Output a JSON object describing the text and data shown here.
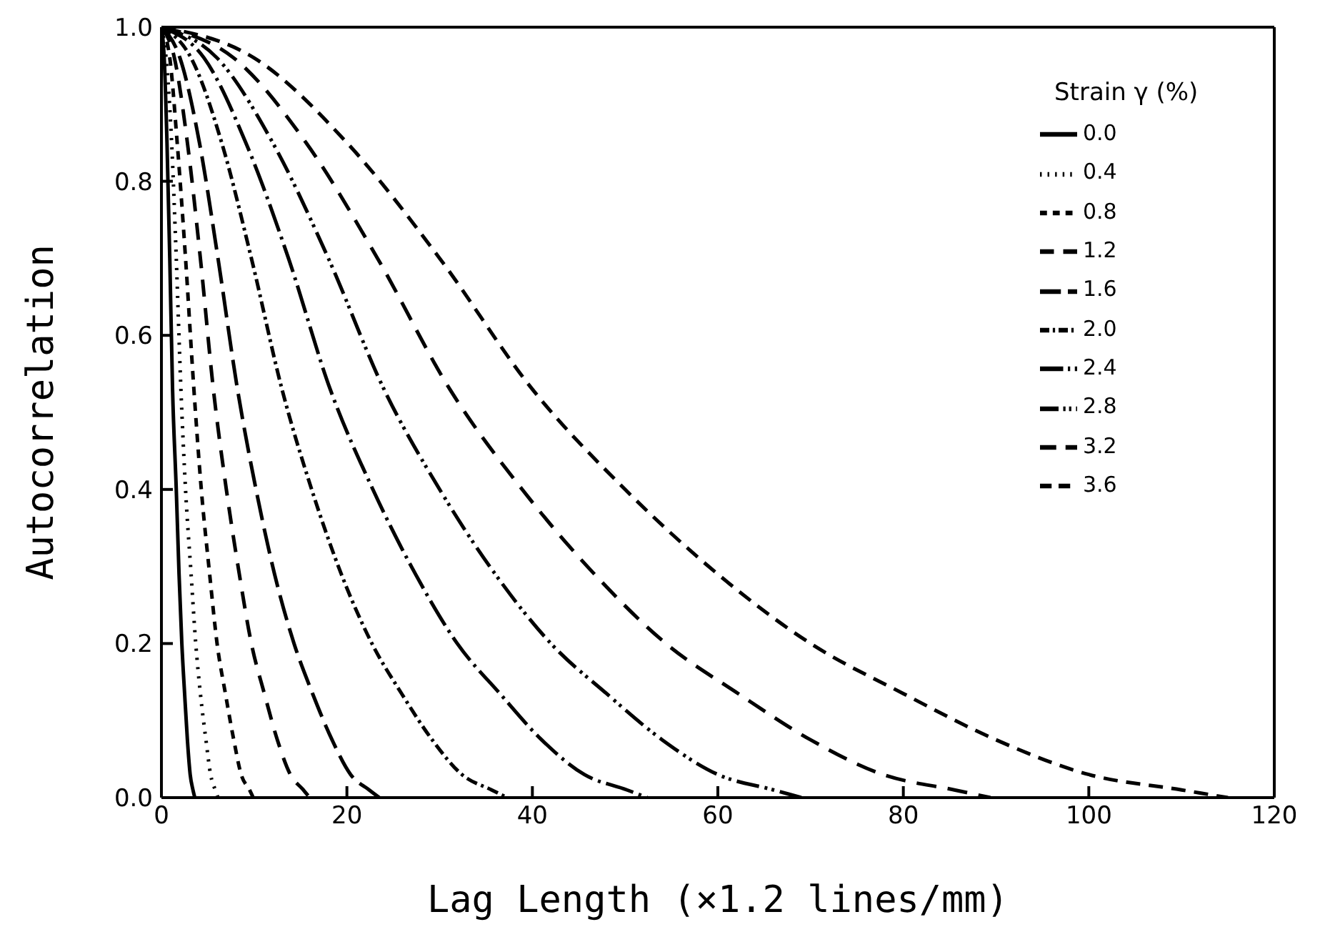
{
  "chart_data": {
    "type": "line",
    "xlabel": "Lag Length (×1.2 lines/mm)",
    "ylabel": "Autocorrelation",
    "legend_title": "Strain γ (%)",
    "legend": "top right",
    "marker": "none",
    "xlim": [
      0,
      120
    ],
    "xticks": [
      0,
      20,
      40,
      60,
      80,
      100,
      120
    ],
    "ylim": [
      0,
      1
    ],
    "yticks": [
      {
        "value": 0,
        "label": "0.0"
      },
      {
        "value": 0.2,
        "label": "0.2"
      },
      {
        "value": 0.4,
        "label": "0.4"
      },
      {
        "value": 0.6,
        "label": "0.6"
      },
      {
        "value": 0.8,
        "label": "0.8"
      },
      {
        "value": 1,
        "label": "1.0"
      }
    ],
    "series": [
      {
        "name": "0.0",
        "color": "#000000",
        "line_style": "solid",
        "x": [
          0,
          0.3,
          0.6,
          0.9,
          1.2,
          1.6,
          1.9,
          2.2,
          2.5,
          2.8,
          3.1,
          3.4,
          3.6
        ],
        "values": [
          1,
          0.96,
          0.85,
          0.7,
          0.53,
          0.4,
          0.29,
          0.2,
          0.135,
          0.075,
          0.03,
          0.01,
          0
        ]
      },
      {
        "name": "0.4",
        "color": "#000000",
        "line_style": "dotted",
        "x": [
          0,
          0.5,
          1.1,
          1.6,
          2.1,
          2.6,
          3.2,
          3.7,
          4.2,
          4.8,
          5.3,
          5.8,
          6.1
        ],
        "values": [
          1,
          0.96,
          0.85,
          0.7,
          0.53,
          0.4,
          0.29,
          0.2,
          0.135,
          0.075,
          0.03,
          0.01,
          0
        ]
      },
      {
        "name": "0.8",
        "color": "#000000",
        "line_style": "dashed",
        "x": [
          0,
          0.9,
          1.7,
          2.6,
          3.5,
          4.3,
          5.2,
          6.0,
          6.9,
          7.8,
          8.6,
          9.5,
          9.9
        ],
        "values": [
          1,
          0.96,
          0.85,
          0.7,
          0.53,
          0.4,
          0.29,
          0.2,
          0.135,
          0.075,
          0.03,
          0.01,
          0
        ]
      },
      {
        "name": "1.2",
        "color": "#000000",
        "line_style": "dashed",
        "x": [
          0,
          1.4,
          2.8,
          4.2,
          5.6,
          7.0,
          8.4,
          9.7,
          11.1,
          12.5,
          13.9,
          15.3,
          16.0
        ],
        "values": [
          1,
          0.96,
          0.85,
          0.7,
          0.53,
          0.4,
          0.29,
          0.2,
          0.135,
          0.075,
          0.03,
          0.01,
          0
        ]
      },
      {
        "name": "1.6",
        "color": "#000000",
        "line_style": "dashed",
        "x": [
          0,
          2.0,
          4.1,
          6.1,
          8.2,
          10.2,
          12.2,
          14.3,
          16.3,
          18.4,
          20.4,
          22.4,
          23.5
        ],
        "values": [
          1,
          0.96,
          0.85,
          0.7,
          0.53,
          0.4,
          0.29,
          0.2,
          0.135,
          0.075,
          0.03,
          0.01,
          0
        ]
      },
      {
        "name": "2.0",
        "color": "#000000",
        "line_style": "dashed",
        "x": [
          0,
          3.2,
          6.5,
          9.7,
          13.0,
          16.2,
          19.4,
          22.7,
          25.9,
          29.2,
          32.4,
          35.6,
          37.3
        ],
        "values": [
          1,
          0.96,
          0.85,
          0.7,
          0.53,
          0.4,
          0.29,
          0.2,
          0.135,
          0.075,
          0.03,
          0.01,
          0
        ]
      },
      {
        "name": "2.4",
        "color": "#000000",
        "line_style": "dashed",
        "x": [
          0,
          4.6,
          9.1,
          13.7,
          18.2,
          22.8,
          27.4,
          31.9,
          36.5,
          41.0,
          45.6,
          50.2,
          52.4
        ],
        "values": [
          1,
          0.96,
          0.85,
          0.7,
          0.53,
          0.4,
          0.29,
          0.2,
          0.135,
          0.075,
          0.03,
          0.01,
          0
        ]
      },
      {
        "name": "2.8",
        "color": "#000000",
        "line_style": "dashed",
        "x": [
          0,
          6,
          12,
          18,
          24,
          30,
          36,
          42,
          48,
          54,
          60,
          66,
          69
        ],
        "values": [
          1,
          0.96,
          0.85,
          0.7,
          0.53,
          0.4,
          0.29,
          0.2,
          0.135,
          0.075,
          0.03,
          0.01,
          0
        ]
      },
      {
        "name": "3.2",
        "color": "#000000",
        "line_style": "dashed",
        "x": [
          0,
          7.8,
          15.6,
          23.3,
          31.1,
          38.9,
          46.7,
          54.4,
          62.2,
          70.0,
          77.8,
          85.5,
          89.4
        ],
        "values": [
          1,
          0.96,
          0.85,
          0.7,
          0.53,
          0.4,
          0.29,
          0.2,
          0.135,
          0.075,
          0.03,
          0.01,
          0
        ]
      },
      {
        "name": "3.6",
        "color": "#000000",
        "line_style": "dashed",
        "x": [
          0,
          10,
          20,
          30,
          40,
          50,
          60,
          70,
          80,
          90,
          100,
          110,
          115
        ],
        "values": [
          1,
          0.96,
          0.85,
          0.7,
          0.53,
          0.4,
          0.29,
          0.2,
          0.135,
          0.075,
          0.03,
          0.01,
          0
        ]
      }
    ]
  }
}
